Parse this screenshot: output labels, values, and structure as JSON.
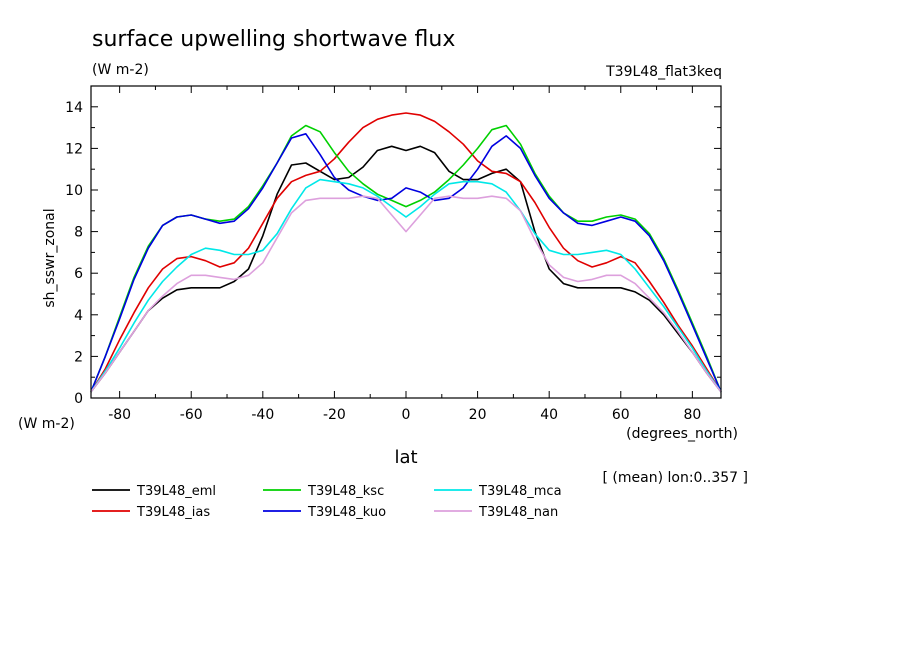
{
  "chart_data": {
    "type": "line",
    "title": "surface upwelling shortwave flux",
    "units": "(W m-2)",
    "experiment": "T39L48_flat3keq",
    "ylabel": "sh_sswr_zonal",
    "ylabel_units": "(W m-2)",
    "xlabel": "lat",
    "xlabel_units": "(degrees_north)",
    "note": "[ (mean) lon:0..357 ]",
    "xlim": [
      -88,
      88
    ],
    "ylim": [
      0,
      15
    ],
    "x_ticks": [
      -80,
      -60,
      -40,
      -20,
      0,
      20,
      40,
      60,
      80
    ],
    "y_ticks": [
      0,
      2,
      4,
      6,
      8,
      10,
      12,
      14
    ],
    "x": [
      -88,
      -84,
      -80,
      -76,
      -72,
      -68,
      -64,
      -60,
      -56,
      -52,
      -48,
      -44,
      -40,
      -36,
      -32,
      -28,
      -24,
      -20,
      -16,
      -12,
      -8,
      -4,
      0,
      4,
      8,
      12,
      16,
      20,
      24,
      28,
      32,
      36,
      40,
      44,
      48,
      52,
      56,
      60,
      64,
      68,
      72,
      76,
      80,
      84,
      88
    ],
    "series": [
      {
        "name": "T39L48_eml",
        "color": "#000000",
        "values": [
          0.3,
          1.2,
          2.2,
          3.2,
          4.2,
          4.8,
          5.2,
          5.3,
          5.3,
          5.3,
          5.6,
          6.2,
          7.8,
          9.8,
          11.2,
          11.3,
          10.9,
          10.5,
          10.6,
          11.1,
          11.9,
          12.1,
          11.9,
          12.1,
          11.8,
          10.9,
          10.5,
          10.5,
          10.8,
          11.0,
          10.4,
          8.0,
          6.2,
          5.5,
          5.3,
          5.3,
          5.3,
          5.3,
          5.1,
          4.7,
          4.0,
          3.1,
          2.2,
          1.2,
          0.3
        ]
      },
      {
        "name": "T39L48_ias",
        "color": "#e00000",
        "values": [
          0.3,
          1.4,
          2.8,
          4.1,
          5.3,
          6.2,
          6.7,
          6.8,
          6.6,
          6.3,
          6.5,
          7.2,
          8.4,
          9.6,
          10.4,
          10.7,
          10.9,
          11.5,
          12.3,
          13.0,
          13.4,
          13.6,
          13.7,
          13.6,
          13.3,
          12.8,
          12.2,
          11.4,
          10.9,
          10.8,
          10.4,
          9.4,
          8.2,
          7.2,
          6.6,
          6.3,
          6.5,
          6.8,
          6.5,
          5.6,
          4.6,
          3.5,
          2.5,
          1.4,
          0.3
        ]
      },
      {
        "name": "T39L48_ksc",
        "color": "#00d000",
        "values": [
          0.3,
          2.0,
          3.9,
          5.8,
          7.3,
          8.3,
          8.7,
          8.8,
          8.6,
          8.5,
          8.6,
          9.2,
          10.2,
          11.3,
          12.6,
          13.1,
          12.8,
          11.8,
          10.9,
          10.3,
          9.8,
          9.5,
          9.2,
          9.5,
          9.9,
          10.5,
          11.2,
          12.0,
          12.9,
          13.1,
          12.2,
          10.8,
          9.7,
          8.9,
          8.5,
          8.5,
          8.7,
          8.8,
          8.6,
          7.9,
          6.7,
          5.2,
          3.6,
          2.0,
          0.3
        ]
      },
      {
        "name": "T39L48_kuo",
        "color": "#0000e0",
        "values": [
          0.3,
          2.0,
          3.8,
          5.7,
          7.2,
          8.3,
          8.7,
          8.8,
          8.6,
          8.4,
          8.5,
          9.1,
          10.1,
          11.3,
          12.5,
          12.7,
          11.7,
          10.6,
          10.0,
          9.7,
          9.5,
          9.6,
          10.1,
          9.9,
          9.5,
          9.6,
          10.1,
          11.0,
          12.1,
          12.6,
          12.0,
          10.7,
          9.6,
          8.9,
          8.4,
          8.3,
          8.5,
          8.7,
          8.5,
          7.8,
          6.6,
          5.1,
          3.5,
          1.9,
          0.3
        ]
      },
      {
        "name": "T39L48_mca",
        "color": "#00e8e8",
        "values": [
          0.3,
          1.3,
          2.4,
          3.6,
          4.7,
          5.6,
          6.3,
          6.9,
          7.2,
          7.1,
          6.9,
          6.9,
          7.1,
          7.9,
          9.1,
          10.1,
          10.5,
          10.4,
          10.3,
          10.1,
          9.7,
          9.2,
          8.7,
          9.2,
          9.8,
          10.3,
          10.4,
          10.4,
          10.3,
          9.9,
          9.0,
          7.9,
          7.1,
          6.9,
          6.9,
          7.0,
          7.1,
          6.9,
          6.2,
          5.3,
          4.4,
          3.4,
          2.4,
          1.3,
          0.3
        ]
      },
      {
        "name": "T39L48_nan",
        "color": "#dda0dd",
        "values": [
          0.3,
          1.2,
          2.2,
          3.2,
          4.2,
          4.9,
          5.5,
          5.9,
          5.9,
          5.8,
          5.7,
          5.9,
          6.5,
          7.7,
          8.9,
          9.5,
          9.6,
          9.6,
          9.6,
          9.7,
          9.6,
          8.8,
          8.0,
          8.8,
          9.6,
          9.7,
          9.6,
          9.6,
          9.7,
          9.6,
          9.0,
          7.6,
          6.4,
          5.8,
          5.6,
          5.7,
          5.9,
          5.9,
          5.5,
          4.8,
          4.1,
          3.2,
          2.2,
          1.2,
          0.3
        ]
      }
    ]
  }
}
